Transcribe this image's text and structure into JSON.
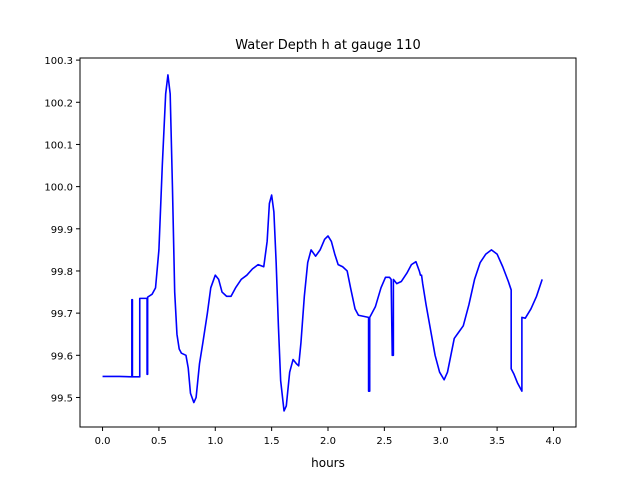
{
  "chart_data": {
    "type": "line",
    "title": "Water Depth h at gauge 110",
    "xlabel": "hours",
    "ylabel": "",
    "xlim": [
      -0.2,
      4.2
    ],
    "ylim": [
      99.43,
      100.305
    ],
    "xticks": [
      0.0,
      0.5,
      1.0,
      1.5,
      2.0,
      2.5,
      3.0,
      3.5,
      4.0
    ],
    "xtick_labels": [
      "0.0",
      "0.5",
      "1.0",
      "1.5",
      "2.0",
      "2.5",
      "3.0",
      "3.5",
      "4.0"
    ],
    "yticks": [
      99.5,
      99.6,
      99.7,
      99.8,
      99.9,
      100.0,
      100.1,
      100.2,
      100.3
    ],
    "ytick_labels": [
      "99.5",
      "99.6",
      "99.7",
      "99.8",
      "99.9",
      "100.0",
      "100.1",
      "100.2",
      "100.3"
    ],
    "grid": false,
    "series": [
      {
        "color": "#0000ff",
        "points": [
          [
            0.0,
            99.55
          ],
          [
            0.15,
            99.55
          ],
          [
            0.26,
            99.549
          ],
          [
            0.26,
            99.732
          ],
          [
            0.265,
            99.732
          ],
          [
            0.265,
            99.549
          ],
          [
            0.33,
            99.549
          ],
          [
            0.33,
            99.735
          ],
          [
            0.395,
            99.735
          ],
          [
            0.395,
            99.555
          ],
          [
            0.4,
            99.555
          ],
          [
            0.4,
            99.738
          ],
          [
            0.44,
            99.745
          ],
          [
            0.47,
            99.76
          ],
          [
            0.5,
            99.85
          ],
          [
            0.53,
            100.05
          ],
          [
            0.56,
            100.22
          ],
          [
            0.58,
            100.265
          ],
          [
            0.6,
            100.22
          ],
          [
            0.62,
            100.0
          ],
          [
            0.64,
            99.75
          ],
          [
            0.66,
            99.65
          ],
          [
            0.68,
            99.615
          ],
          [
            0.7,
            99.605
          ],
          [
            0.74,
            99.6
          ],
          [
            0.76,
            99.57
          ],
          [
            0.78,
            99.51
          ],
          [
            0.81,
            99.488
          ],
          [
            0.83,
            99.5
          ],
          [
            0.86,
            99.58
          ],
          [
            0.89,
            99.63
          ],
          [
            0.93,
            99.7
          ],
          [
            0.96,
            99.76
          ],
          [
            1.0,
            99.79
          ],
          [
            1.03,
            99.78
          ],
          [
            1.06,
            99.75
          ],
          [
            1.1,
            99.74
          ],
          [
            1.14,
            99.74
          ],
          [
            1.18,
            99.76
          ],
          [
            1.23,
            99.78
          ],
          [
            1.28,
            99.79
          ],
          [
            1.33,
            99.805
          ],
          [
            1.38,
            99.815
          ],
          [
            1.43,
            99.81
          ],
          [
            1.46,
            99.87
          ],
          [
            1.48,
            99.96
          ],
          [
            1.5,
            99.98
          ],
          [
            1.52,
            99.94
          ],
          [
            1.54,
            99.82
          ],
          [
            1.56,
            99.67
          ],
          [
            1.58,
            99.54
          ],
          [
            1.61,
            99.468
          ],
          [
            1.63,
            99.48
          ],
          [
            1.66,
            99.56
          ],
          [
            1.69,
            99.59
          ],
          [
            1.72,
            99.58
          ],
          [
            1.74,
            99.575
          ],
          [
            1.76,
            99.63
          ],
          [
            1.79,
            99.74
          ],
          [
            1.82,
            99.82
          ],
          [
            1.85,
            99.85
          ],
          [
            1.89,
            99.835
          ],
          [
            1.93,
            99.85
          ],
          [
            1.97,
            99.875
          ],
          [
            2.0,
            99.883
          ],
          [
            2.03,
            99.87
          ],
          [
            2.06,
            99.84
          ],
          [
            2.09,
            99.815
          ],
          [
            2.13,
            99.81
          ],
          [
            2.17,
            99.8
          ],
          [
            2.2,
            99.76
          ],
          [
            2.24,
            99.71
          ],
          [
            2.27,
            99.695
          ],
          [
            2.36,
            99.69
          ],
          [
            2.36,
            99.515
          ],
          [
            2.37,
            99.515
          ],
          [
            2.37,
            99.69
          ],
          [
            2.42,
            99.715
          ],
          [
            2.47,
            99.76
          ],
          [
            2.51,
            99.785
          ],
          [
            2.545,
            99.785
          ],
          [
            2.56,
            99.78
          ],
          [
            2.57,
            99.6
          ],
          [
            2.58,
            99.6
          ],
          [
            2.58,
            99.78
          ],
          [
            2.61,
            99.77
          ],
          [
            2.65,
            99.775
          ],
          [
            2.7,
            99.795
          ],
          [
            2.74,
            99.815
          ],
          [
            2.78,
            99.822
          ],
          [
            2.81,
            99.8
          ],
          [
            2.82,
            99.79
          ],
          [
            2.83,
            99.79
          ],
          [
            2.84,
            99.77
          ],
          [
            2.87,
            99.72
          ],
          [
            2.91,
            99.66
          ],
          [
            2.95,
            99.6
          ],
          [
            2.99,
            99.56
          ],
          [
            3.03,
            99.542
          ],
          [
            3.06,
            99.56
          ],
          [
            3.09,
            99.6
          ],
          [
            3.12,
            99.64
          ],
          [
            3.16,
            99.655
          ],
          [
            3.2,
            99.67
          ],
          [
            3.25,
            99.72
          ],
          [
            3.3,
            99.78
          ],
          [
            3.35,
            99.82
          ],
          [
            3.4,
            99.84
          ],
          [
            3.45,
            99.85
          ],
          [
            3.5,
            99.84
          ],
          [
            3.55,
            99.81
          ],
          [
            3.6,
            99.775
          ],
          [
            3.625,
            99.755
          ],
          [
            3.625,
            99.568
          ],
          [
            3.65,
            99.555
          ],
          [
            3.68,
            99.535
          ],
          [
            3.72,
            99.515
          ],
          [
            3.72,
            99.69
          ],
          [
            3.75,
            99.688
          ],
          [
            3.8,
            99.71
          ],
          [
            3.85,
            99.74
          ],
          [
            3.9,
            99.78
          ]
        ]
      }
    ]
  }
}
